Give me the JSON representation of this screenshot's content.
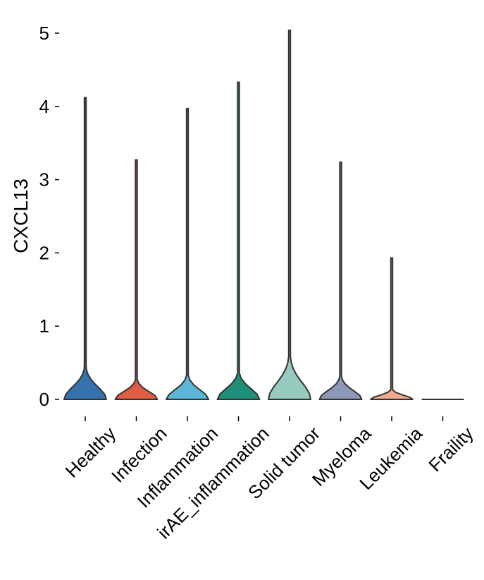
{
  "chart_data": {
    "type": "violin",
    "ylabel": "CXCL13",
    "xlabel": "",
    "title": "",
    "ylim": [
      -0.15,
      5.2
    ],
    "yticks": [
      0,
      1,
      2,
      3,
      4,
      5
    ],
    "ytick_labels": [
      "0",
      "1",
      "2",
      "3",
      "4",
      "5"
    ],
    "grid": false,
    "categories": [
      "Healthy",
      "Infection",
      "Inflammation",
      "irAE_inflammation",
      "Solid tumor",
      "Myeloma",
      "Leukemia",
      "Fraility"
    ],
    "violins": [
      {
        "category": "Healthy",
        "max": 4.12,
        "color": "#3571ad"
      },
      {
        "category": "Infection",
        "max": 3.27,
        "color": "#e05c44"
      },
      {
        "category": "Inflammation",
        "max": 3.97,
        "color": "#5ab8d6"
      },
      {
        "category": "irAE_inflammation",
        "max": 4.33,
        "color": "#1f8f7a"
      },
      {
        "category": "Solid tumor",
        "max": 5.04,
        "color": "#98cbbf"
      },
      {
        "category": "Myeloma",
        "max": 3.24,
        "color": "#8e98b8"
      },
      {
        "category": "Leukemia",
        "max": 1.93,
        "color": "#f3a98d"
      },
      {
        "category": "Fraility",
        "max": 0.0,
        "color": "#ffffff"
      }
    ]
  }
}
